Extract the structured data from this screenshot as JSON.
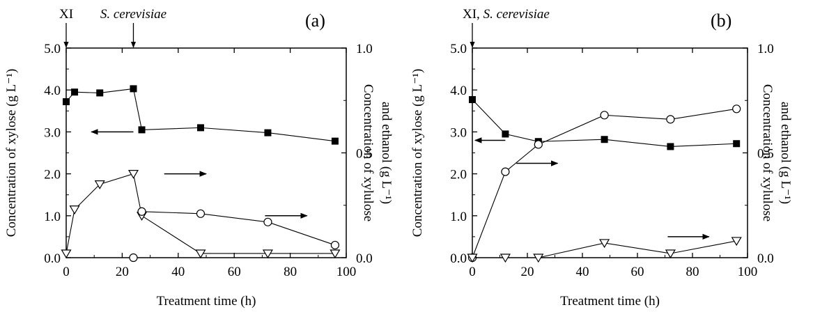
{
  "chart_data": [
    {
      "type": "line",
      "panel_label": "(a)",
      "xlabel": "Treatment time (h)",
      "ylabel_left": "Concentration of xylose (g L⁻¹)",
      "ylabel_right_line1": "Concentration of xylulose",
      "ylabel_right_line2": "and ethanol (g L⁻¹)",
      "xlim": [
        0,
        100
      ],
      "ylim_left": [
        0,
        5.0
      ],
      "ylim_right": [
        0,
        1.0
      ],
      "xticks": [
        0,
        20,
        40,
        60,
        80,
        100
      ],
      "yticks_left": [
        "0.0",
        "1.0",
        "2.0",
        "3.0",
        "4.0",
        "5.0"
      ],
      "yticks_right": [
        "0.0",
        "0.5",
        "1.0"
      ],
      "annotations": [
        {
          "text": "XI",
          "x": 0,
          "italic": false
        },
        {
          "text": "S. cerevisiae",
          "x": 24,
          "italic": true
        }
      ],
      "series": [
        {
          "marker": "filled-square",
          "axis": "left",
          "segments": [
            [
              [
                0,
                3.72
              ],
              [
                3,
                3.95
              ],
              [
                12,
                3.93
              ],
              [
                24,
                4.03
              ],
              [
                27,
                3.05
              ],
              [
                48,
                3.1
              ],
              [
                72,
                2.98
              ],
              [
                96,
                2.78
              ]
            ]
          ]
        },
        {
          "marker": "open-triangle-down",
          "axis": "right",
          "segments": [
            [
              [
                0,
                0.02
              ],
              [
                3,
                0.23
              ],
              [
                12,
                0.35
              ],
              [
                24,
                0.4
              ],
              [
                27,
                0.2
              ],
              [
                48,
                0.02
              ],
              [
                72,
                0.02
              ],
              [
                96,
                0.02
              ]
            ]
          ]
        },
        {
          "marker": "open-circle",
          "axis": "right",
          "segments": [
            [
              [
                24,
                0.0
              ]
            ],
            [
              [
                27,
                0.22
              ],
              [
                48,
                0.21
              ],
              [
                72,
                0.17
              ],
              [
                96,
                0.06
              ]
            ]
          ]
        }
      ],
      "arrows": [
        {
          "from": [
            24,
            3.0
          ],
          "to": [
            9,
            3.0
          ],
          "axis": "left"
        },
        {
          "from": [
            35,
            0.4
          ],
          "to": [
            50,
            0.4
          ],
          "axis": "right"
        },
        {
          "from": [
            71,
            0.2
          ],
          "to": [
            86,
            0.2
          ],
          "axis": "right"
        }
      ]
    },
    {
      "type": "line",
      "panel_label": "(b)",
      "xlabel": "Treatment time (h)",
      "ylabel_left": "Concentration of xylose (g L⁻¹)",
      "ylabel_right_line1": "Concentration of xylulose",
      "ylabel_right_line2": "and ethanol (g L⁻¹)",
      "xlim": [
        0,
        100
      ],
      "ylim_left": [
        0,
        5.0
      ],
      "ylim_right": [
        0,
        1.0
      ],
      "xticks": [
        0,
        20,
        40,
        60,
        80,
        100
      ],
      "yticks_left": [
        "0.0",
        "1.0",
        "2.0",
        "3.0",
        "4.0",
        "5.0"
      ],
      "yticks_right": [
        "0.0",
        "0.5",
        "1.0"
      ],
      "annotations": [
        {
          "text": "XI, ",
          "x": 0,
          "italic": false,
          "suffix": "S. cerevisiae"
        }
      ],
      "series": [
        {
          "marker": "filled-square",
          "axis": "left",
          "segments": [
            [
              [
                0,
                3.77
              ],
              [
                12,
                2.95
              ],
              [
                24,
                2.77
              ],
              [
                48,
                2.82
              ],
              [
                72,
                2.65
              ],
              [
                96,
                2.72
              ]
            ]
          ]
        },
        {
          "marker": "open-circle",
          "axis": "right",
          "segments": [
            [
              [
                0,
                0.0
              ],
              [
                12,
                0.41
              ],
              [
                24,
                0.54
              ],
              [
                48,
                0.68
              ],
              [
                72,
                0.66
              ],
              [
                96,
                0.71
              ]
            ]
          ]
        },
        {
          "marker": "open-triangle-down",
          "axis": "right",
          "segments": [
            [
              [
                0,
                0.0
              ],
              [
                12,
                0.0
              ],
              [
                24,
                0.0
              ],
              [
                48,
                0.07
              ],
              [
                72,
                0.02
              ],
              [
                96,
                0.08
              ]
            ]
          ]
        }
      ],
      "arrows": [
        {
          "from": [
            12,
            2.8
          ],
          "to": [
            1,
            2.8
          ],
          "axis": "left"
        },
        {
          "from": [
            16,
            0.45
          ],
          "to": [
            31,
            0.45
          ],
          "axis": "right"
        },
        {
          "from": [
            71,
            0.1
          ],
          "to": [
            86,
            0.1
          ],
          "axis": "right"
        }
      ]
    }
  ]
}
